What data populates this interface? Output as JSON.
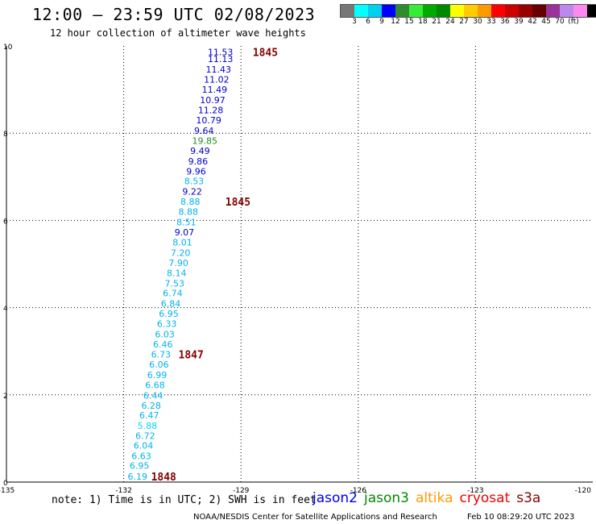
{
  "header": {
    "title": "12:00 — 23:59 UTC 02/08/2023",
    "subtitle": "12 hour collection of altimeter wave heights"
  },
  "legend": {
    "colors": [
      "#777777",
      "#00ffff",
      "#00d0f0",
      "#0000ff",
      "#2e8b2e",
      "#33ee33",
      "#00aa00",
      "#008800",
      "#ffff00",
      "#ffcc00",
      "#ff9900",
      "#ff0000",
      "#cc0000",
      "#990000",
      "#660000",
      "#993399",
      "#bb88ee",
      "#ff88ee",
      "#000000"
    ],
    "labels": [
      "3",
      "6",
      "9",
      "12",
      "15",
      "18",
      "21",
      "24",
      "27",
      "30",
      "33",
      "36",
      "39",
      "42",
      "45",
      "70",
      "(ft)"
    ]
  },
  "chart_data": {
    "type": "scatter",
    "xlim": [
      -135,
      -120
    ],
    "ylim": [
      0,
      10
    ],
    "x_ticks": [
      "-135",
      "-132",
      "-129",
      "-126",
      "-123",
      "-120"
    ],
    "y_ticks": [
      "0",
      "2",
      "4",
      "6",
      "8",
      "10"
    ],
    "grid": true,
    "points": [
      {
        "x": -131.9,
        "y": 0.13,
        "label": "6.19",
        "color": "#00b4ec"
      },
      {
        "x": -131.85,
        "y": 0.38,
        "label": "6.95",
        "color": "#00b4ec"
      },
      {
        "x": -131.8,
        "y": 0.6,
        "label": "6.63",
        "color": "#00b4ec"
      },
      {
        "x": -131.75,
        "y": 0.84,
        "label": "6.04",
        "color": "#00b4ec"
      },
      {
        "x": -131.7,
        "y": 1.06,
        "label": "6.72",
        "color": "#00b4ec"
      },
      {
        "x": -131.65,
        "y": 1.29,
        "label": "5.88",
        "color": "#00d8f4"
      },
      {
        "x": -131.6,
        "y": 1.53,
        "label": "6.47",
        "color": "#00b4ec"
      },
      {
        "x": -131.55,
        "y": 1.76,
        "label": "6.28",
        "color": "#00b4ec"
      },
      {
        "x": -131.5,
        "y": 1.99,
        "label": "6.44",
        "color": "#00b4ec"
      },
      {
        "x": -131.45,
        "y": 2.23,
        "label": "6.68",
        "color": "#00b4ec"
      },
      {
        "x": -131.4,
        "y": 2.46,
        "label": "6.99",
        "color": "#00b4ec"
      },
      {
        "x": -131.35,
        "y": 2.7,
        "label": "6.06",
        "color": "#00b4ec"
      },
      {
        "x": -131.3,
        "y": 2.93,
        "label": "6.73",
        "color": "#00b4ec"
      },
      {
        "x": -131.25,
        "y": 3.16,
        "label": "6.46",
        "color": "#00b4ec"
      },
      {
        "x": -131.2,
        "y": 3.39,
        "label": "6.03",
        "color": "#00b4ec"
      },
      {
        "x": -131.15,
        "y": 3.63,
        "label": "6.33",
        "color": "#00b4ec"
      },
      {
        "x": -131.1,
        "y": 3.86,
        "label": "6.95",
        "color": "#00b4ec"
      },
      {
        "x": -131.05,
        "y": 4.09,
        "label": "6.84",
        "color": "#00b4ec"
      },
      {
        "x": -131.0,
        "y": 4.33,
        "label": "6.74",
        "color": "#00b4ec"
      },
      {
        "x": -130.95,
        "y": 4.56,
        "label": "7.53",
        "color": "#00b4ec"
      },
      {
        "x": -130.9,
        "y": 4.8,
        "label": "8.14",
        "color": "#00b4ec"
      },
      {
        "x": -130.85,
        "y": 5.03,
        "label": "7.90",
        "color": "#00b4ec"
      },
      {
        "x": -130.8,
        "y": 5.26,
        "label": "7.20",
        "color": "#00b4ec"
      },
      {
        "x": -130.75,
        "y": 5.5,
        "label": "8.01",
        "color": "#00b4ec"
      },
      {
        "x": -130.7,
        "y": 5.73,
        "label": "9.07",
        "color": "#0000cc"
      },
      {
        "x": -130.65,
        "y": 5.96,
        "label": "8.51",
        "color": "#00b4ec"
      },
      {
        "x": -130.6,
        "y": 6.2,
        "label": "8.88",
        "color": "#00b4ec"
      },
      {
        "x": -130.55,
        "y": 6.43,
        "label": "8.88",
        "color": "#00b4ec"
      },
      {
        "x": -130.5,
        "y": 6.66,
        "label": "9.22",
        "color": "#0000cc"
      },
      {
        "x": -130.45,
        "y": 6.9,
        "label": "8.53",
        "color": "#00b4ec"
      },
      {
        "x": -130.4,
        "y": 7.13,
        "label": "9.96",
        "color": "#0000cc"
      },
      {
        "x": -130.35,
        "y": 7.36,
        "label": "9.86",
        "color": "#0000cc"
      },
      {
        "x": -130.3,
        "y": 7.6,
        "label": "9.49",
        "color": "#0000cc"
      },
      {
        "x": -130.25,
        "y": 7.83,
        "label": "19.85",
        "color": "#228b22"
      },
      {
        "x": -130.2,
        "y": 8.06,
        "label": "9.64",
        "color": "#0000cc"
      },
      {
        "x": -130.15,
        "y": 8.3,
        "label": "10.79",
        "color": "#0000cc"
      },
      {
        "x": -130.1,
        "y": 8.53,
        "label": "11.28",
        "color": "#0000cc"
      },
      {
        "x": -130.05,
        "y": 8.76,
        "label": "10.97",
        "color": "#0000cc"
      },
      {
        "x": -130.0,
        "y": 9.0,
        "label": "11.49",
        "color": "#0000cc"
      },
      {
        "x": -129.95,
        "y": 9.23,
        "label": "11.02",
        "color": "#0000cc"
      },
      {
        "x": -129.9,
        "y": 9.46,
        "label": "11.43",
        "color": "#0000cc"
      },
      {
        "x": -129.85,
        "y": 9.7,
        "label": "11.13",
        "color": "#0000cc"
      },
      {
        "x": -129.85,
        "y": 9.86,
        "label": "11.53",
        "color": "#0000cc"
      }
    ],
    "time_labels": [
      {
        "x": -128.7,
        "y": 9.86,
        "text": "1845",
        "color": "#800000"
      },
      {
        "x": -129.4,
        "y": 6.43,
        "text": "1845",
        "color": "#800000"
      },
      {
        "x": -130.6,
        "y": 2.93,
        "text": "1847",
        "color": "#800000"
      },
      {
        "x": -131.3,
        "y": 0.13,
        "text": "1848",
        "color": "#800000"
      }
    ]
  },
  "footer": {
    "note": "note: 1) Time is in UTC; 2) SWH is in feet",
    "satellites": [
      {
        "name": "jason2",
        "color": "#0000ee"
      },
      {
        "name": "jason3",
        "color": "#008800"
      },
      {
        "name": "altika",
        "color": "#ff9900"
      },
      {
        "name": "cryosat",
        "color": "#ee0000"
      },
      {
        "name": "s3a",
        "color": "#880000"
      }
    ],
    "credit": "NOAA/NESDIS Center for Satellite Applications and Research",
    "generated": "Feb 10 08:29:20 UTC 2023"
  }
}
